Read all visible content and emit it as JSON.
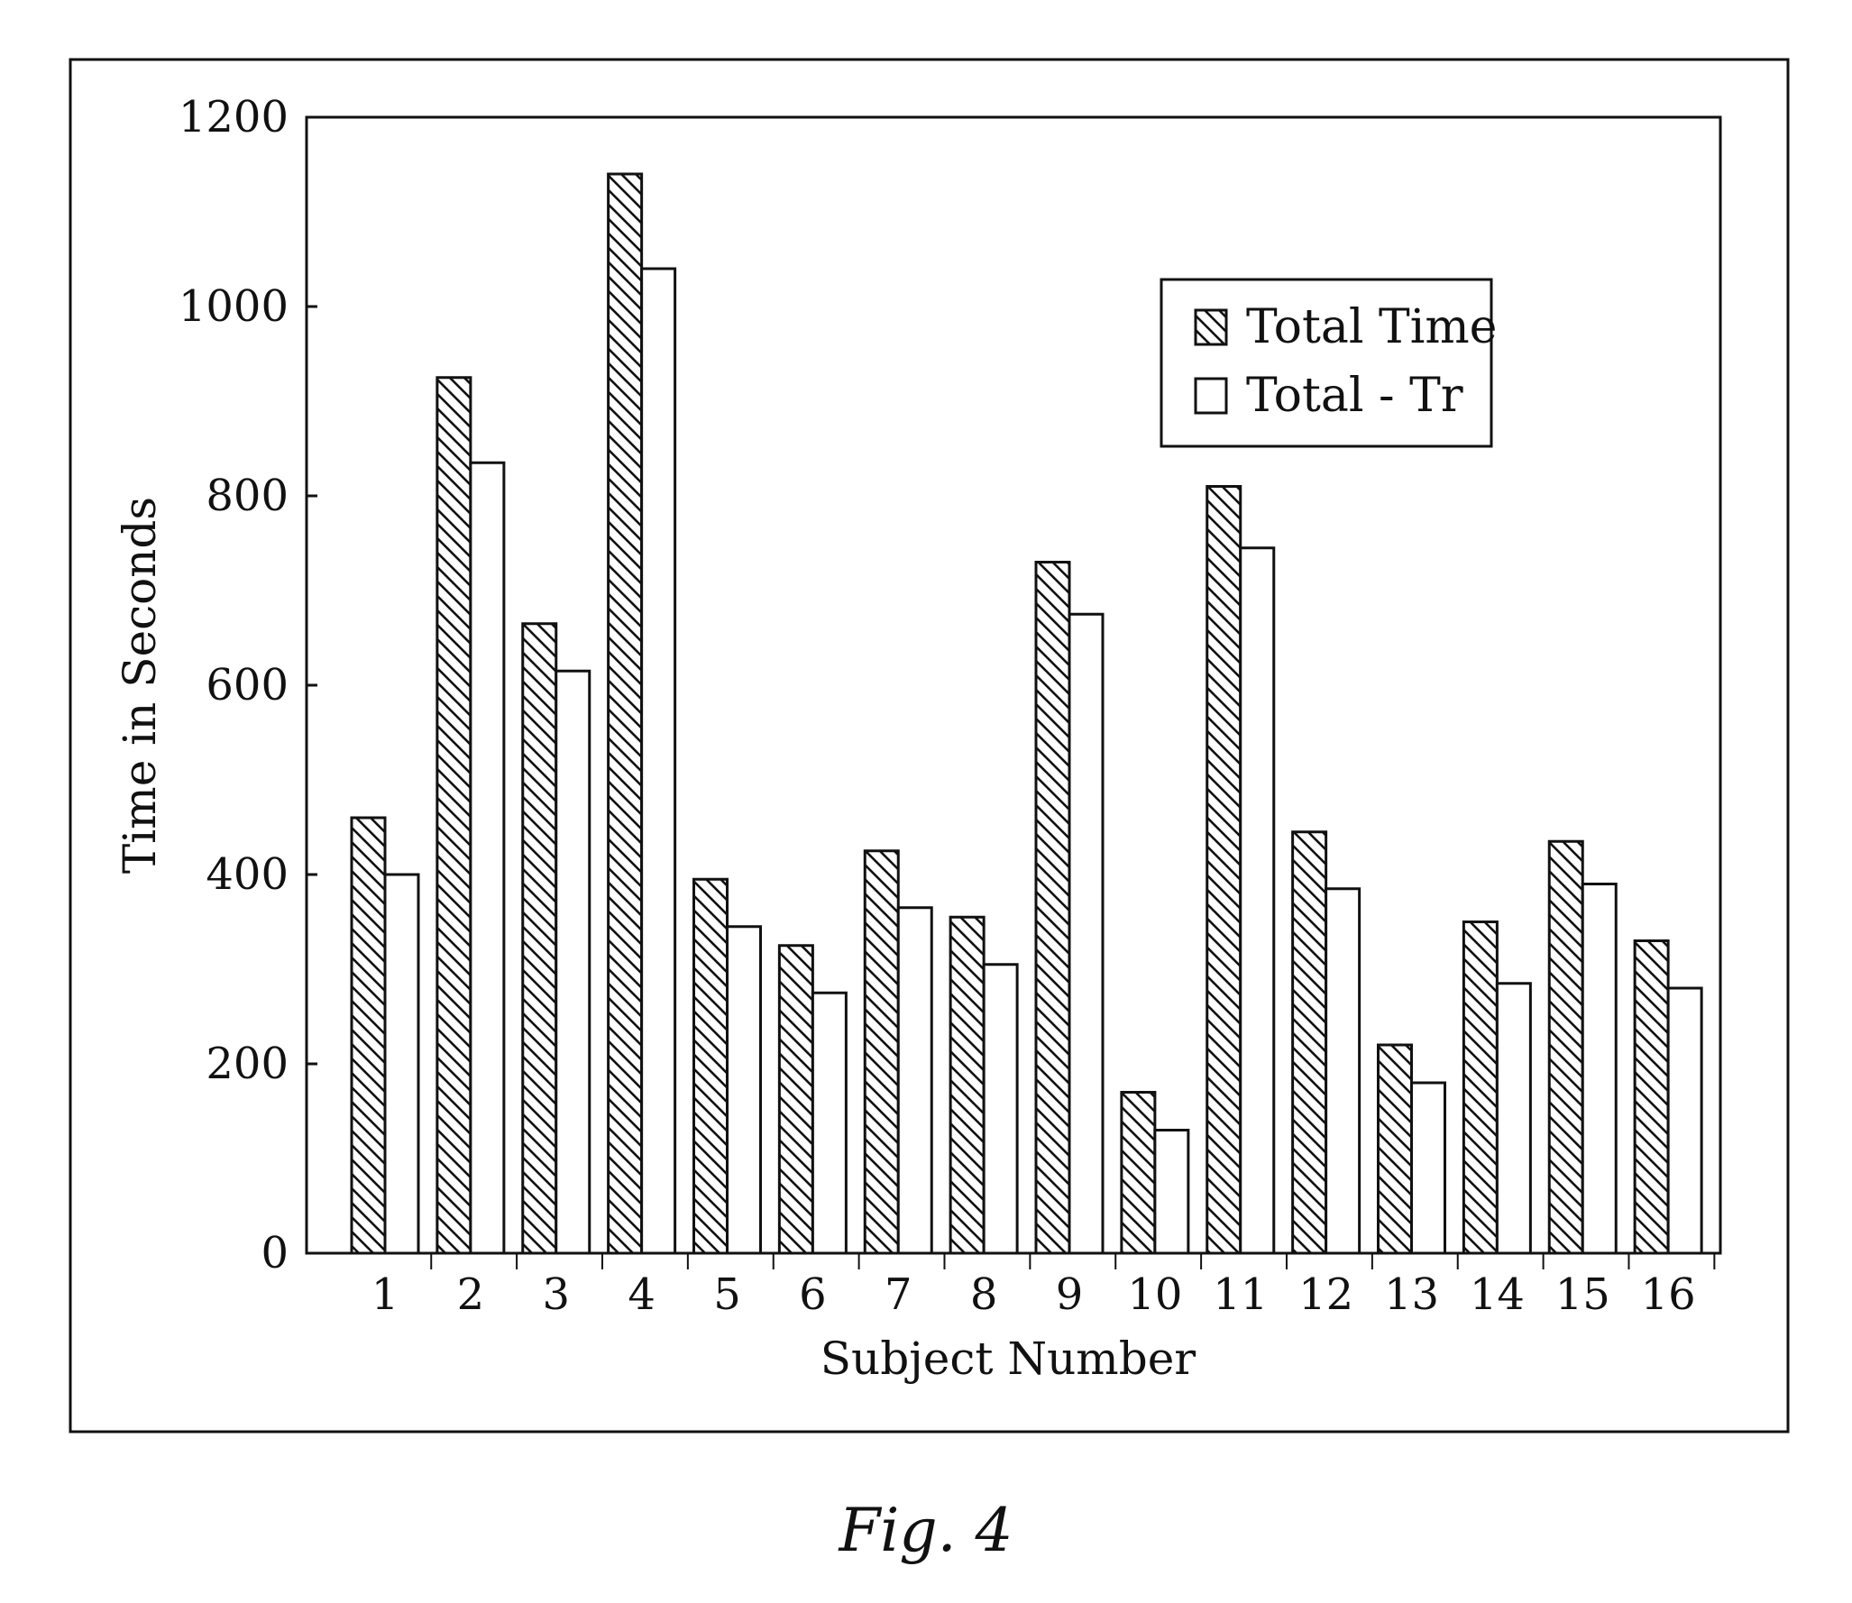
{
  "caption": "Fig. 4",
  "chart_data": {
    "type": "bar",
    "title": "",
    "xlabel": "Subject Number",
    "ylabel": "Time in Seconds",
    "ylim": [
      0,
      1200
    ],
    "yticks": [
      0,
      200,
      400,
      600,
      800,
      1000,
      1200
    ],
    "grid": false,
    "legend_position": "top-right",
    "categories": [
      "1",
      "2",
      "3",
      "4",
      "5",
      "6",
      "7",
      "8",
      "9",
      "10",
      "11",
      "12",
      "13",
      "14",
      "15",
      "16"
    ],
    "series": [
      {
        "name": "Total Time",
        "pattern": "diagonal-hatch",
        "values": [
          460,
          925,
          665,
          1140,
          395,
          325,
          425,
          355,
          730,
          170,
          810,
          445,
          220,
          350,
          435,
          330
        ]
      },
      {
        "name": "Total - Tr",
        "pattern": "none",
        "values": [
          400,
          835,
          615,
          1040,
          345,
          275,
          365,
          305,
          675,
          130,
          745,
          385,
          180,
          285,
          390,
          280
        ]
      }
    ]
  }
}
